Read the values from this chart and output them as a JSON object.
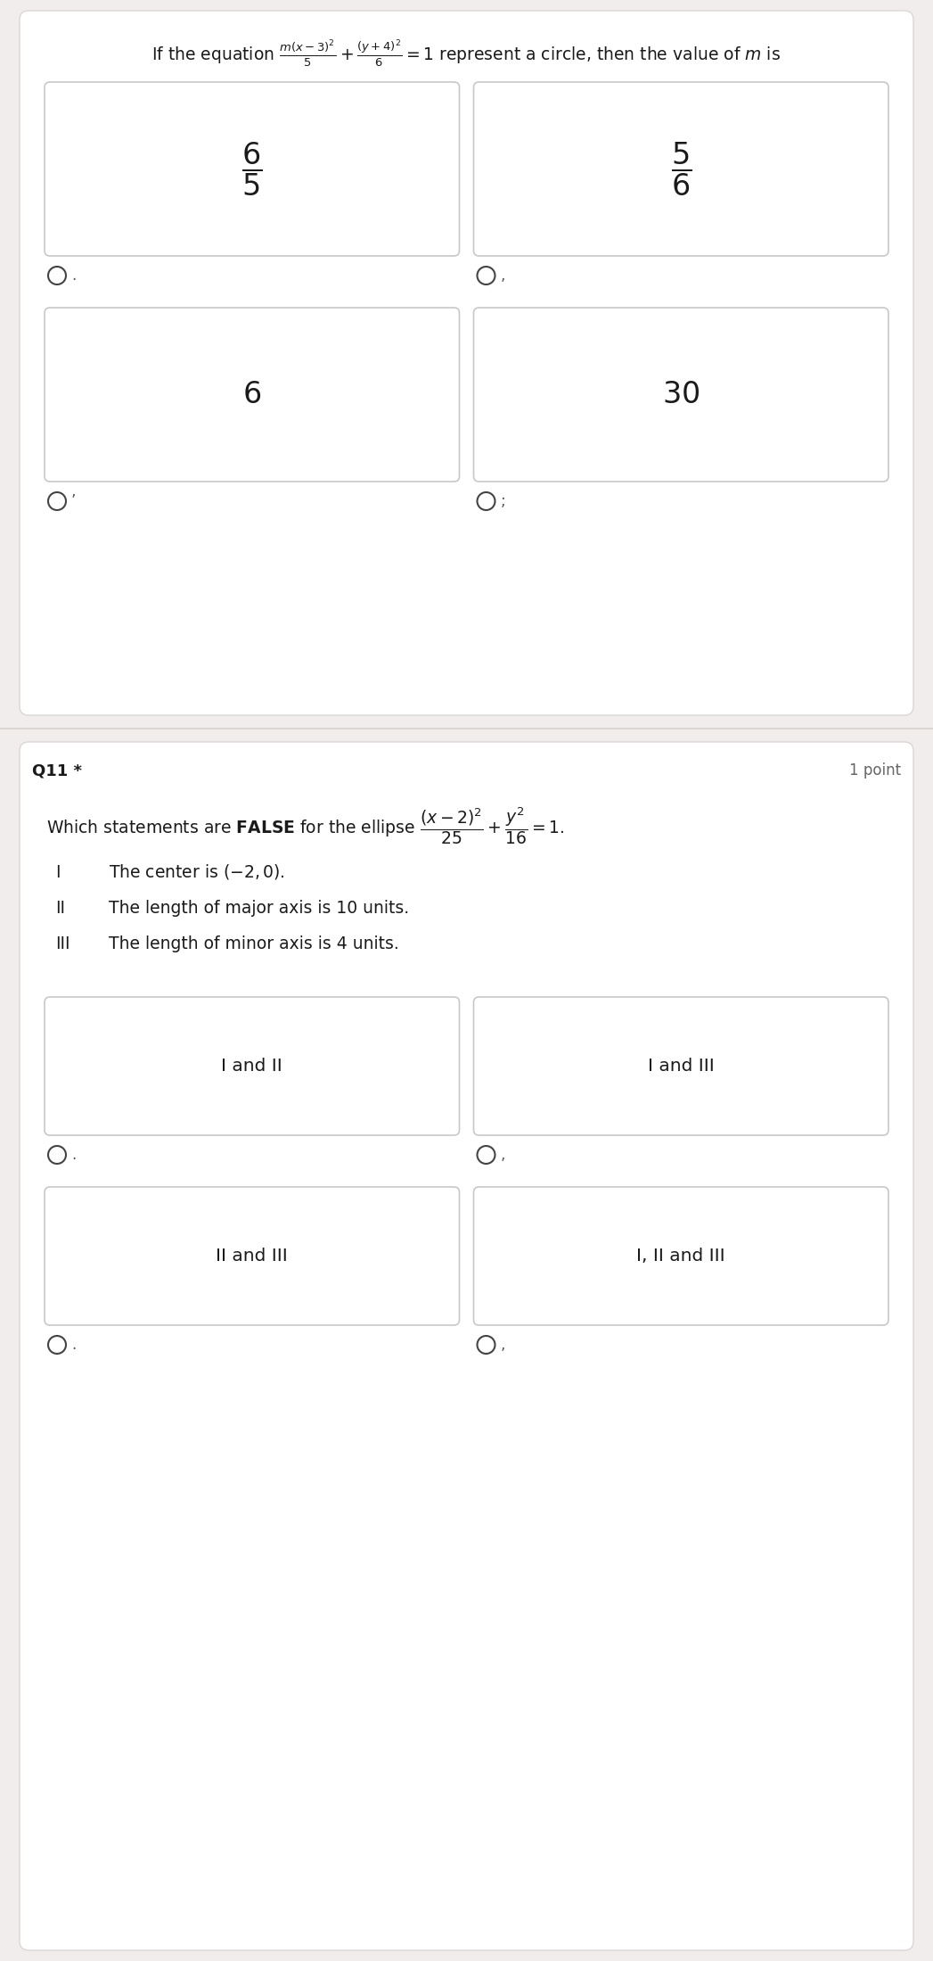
{
  "page_bg": "#f2eded",
  "card_bg": "#ffffff",
  "card_border": "#cccccc",
  "section_border": "#ddd0d0",
  "text_color": "#1a1a1a",
  "radio_color": "#444444",
  "small_label_color": "#555555",
  "q11_label_color": "#cc0000",
  "q10_question": "If the equation $\\frac{m(x-3)^2}{5} + \\frac{(y+4)^2}{6} = 1$ represent a circle, then the value of $m$ is",
  "q10_opt_texts": [
    "$\\dfrac{6}{5}$",
    "$\\dfrac{5}{6}$",
    "$6$",
    "$30$"
  ],
  "q10_radio_labels": [
    ".",
    ",",
    "’",
    ";"
  ],
  "q11_label": "Q11 *",
  "q11_points": "1 point",
  "q11_question_plain": "Which statements are ",
  "q11_question_bold": "FALSE",
  "q11_question_rest": " for the ellipse $\\dfrac{(x-2)^2}{25} + \\dfrac{y^2}{16} = 1$.",
  "q11_statements": [
    [
      "I",
      "The center is $(-2, 0)$."
    ],
    [
      "II",
      "The length of major axis is 10 units."
    ],
    [
      "III",
      "The length of minor axis is 4 units."
    ]
  ],
  "q11_opt_texts": [
    "I and II",
    "I and III",
    "II and III",
    "I, II and III"
  ],
  "q11_radio_labels": [
    ".",
    ",",
    ".",
    ","
  ]
}
